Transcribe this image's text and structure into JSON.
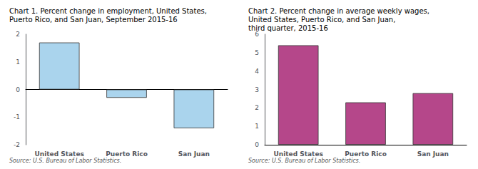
{
  "chart_data": [
    {
      "type": "bar",
      "title": "Chart 1. Percent change in employment, United States,\nPuerto Rico, and San Juan, September 2015-16",
      "categories": [
        "United States",
        "Puerto Rico",
        "San Juan"
      ],
      "values": [
        1.7,
        -0.3,
        -1.4
      ],
      "color": "#aad4ed",
      "ylim": [
        -2,
        2
      ],
      "yticks": [
        -2,
        -1,
        0,
        1,
        2
      ],
      "grid": false,
      "annotations": [
        "Source: U.S. Bureau of Labor Statistics."
      ]
    },
    {
      "type": "bar",
      "title": "Chart 2. Percent change in average weekly wages,\nUnited States, Puerto Rico, and San Juan,\nthird quarter, 2015-16",
      "categories": [
        "United States",
        "Puerto Rico",
        "San Juan"
      ],
      "values": [
        5.4,
        2.3,
        2.8
      ],
      "color": "#b5478a",
      "ylim": [
        0,
        6
      ],
      "yticks": [
        0,
        1,
        2,
        3,
        4,
        5,
        6
      ],
      "grid": false,
      "annotations": [
        "Source: U.S. Bureau of Labor Statistics."
      ]
    }
  ]
}
